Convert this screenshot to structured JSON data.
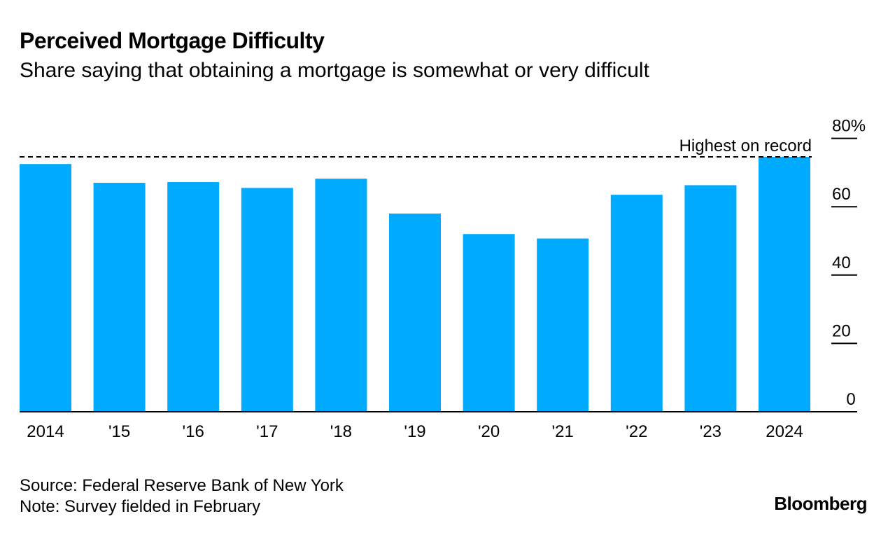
{
  "title": "Perceived Mortgage Difficulty",
  "subtitle": "Share saying that obtaining a mortgage is somewhat or very difficult",
  "colors": {
    "bar": "#00aaff",
    "axis": "#000000",
    "text": "#000000"
  },
  "chart_data": {
    "type": "bar",
    "title": "Perceived Mortgage Difficulty",
    "subtitle": "Share saying that obtaining a mortgage is somewhat or very difficult",
    "categories": [
      "2014",
      "'15",
      "'16",
      "'17",
      "'18",
      "'19",
      "'20",
      "'21",
      "'22",
      "'23",
      "2024"
    ],
    "values": [
      72.5,
      67.0,
      67.2,
      65.5,
      68.2,
      58.0,
      52.0,
      50.7,
      63.5,
      66.3,
      74.6
    ],
    "ylim": [
      0,
      80
    ],
    "yticks": [
      0,
      20,
      40,
      60,
      80
    ],
    "ytick_labels": [
      "0",
      "20",
      "40",
      "60",
      "80%"
    ],
    "xlabel": "",
    "ylabel": "",
    "grid": false,
    "y_axis_side": "right",
    "reference_line": {
      "value": 74.6,
      "label": "Highest on record",
      "style": "dashed"
    }
  },
  "footer": {
    "source": "Source: Federal Reserve Bank of New York",
    "note": "Note: Survey fielded in February"
  },
  "brand": "Bloomberg"
}
